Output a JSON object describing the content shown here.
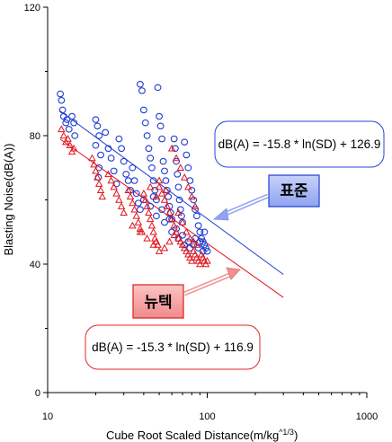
{
  "chart_data": {
    "type": "scatter",
    "title": "",
    "xlabel": "Cube Root Scaled Distance(m/kg^1/3)",
    "xlabel_main": "Cube Root Scaled Distance(m/kg",
    "xlabel_sup": "^1/3",
    "xlabel_close": ")",
    "ylabel": "Blasting Noise(dB(A))",
    "x_scale": "log",
    "xlim": [
      10,
      1000
    ],
    "ylim": [
      0,
      120
    ],
    "x_ticks": [
      "10",
      "100",
      "1000"
    ],
    "y_ticks": [
      "0",
      "40",
      "80",
      "120"
    ],
    "grid": false,
    "colors": {
      "standard": "#1f3fd0",
      "newtec": "#e0141c",
      "standard_tag_fill": "#a9b8f5",
      "newtec_tag_fill": "#f7a3a3"
    },
    "series": [
      {
        "name": "표준",
        "marker": "circle",
        "fit_equation": "dB(A) = -15.8 * ln(SD) + 126.9",
        "fit": {
          "slope": -15.8,
          "intercept": 126.9,
          "x_range": [
            12,
            300
          ]
        },
        "points": [
          [
            12,
            93
          ],
          [
            12.2,
            91
          ],
          [
            12.4,
            88
          ],
          [
            12.6,
            86
          ],
          [
            13,
            84
          ],
          [
            13.2,
            85
          ],
          [
            13.6,
            82
          ],
          [
            14.2,
            86
          ],
          [
            14.6,
            84
          ],
          [
            14.8,
            80
          ],
          [
            20,
            85
          ],
          [
            20.5,
            83
          ],
          [
            21,
            80
          ],
          [
            20,
            77
          ],
          [
            21.5,
            74
          ],
          [
            21,
            70
          ],
          [
            20.8,
            67
          ],
          [
            23,
            81
          ],
          [
            24,
            76
          ],
          [
            25,
            73
          ],
          [
            26,
            69
          ],
          [
            27,
            65
          ],
          [
            28,
            79
          ],
          [
            29,
            76
          ],
          [
            30,
            72
          ],
          [
            31,
            68
          ],
          [
            32,
            66
          ],
          [
            33,
            63
          ],
          [
            34,
            70
          ],
          [
            35,
            66
          ],
          [
            36,
            62
          ],
          [
            37,
            59
          ],
          [
            38,
            57
          ],
          [
            38,
            96
          ],
          [
            39,
            94
          ],
          [
            40,
            88
          ],
          [
            41,
            84
          ],
          [
            42,
            80
          ],
          [
            43,
            76
          ],
          [
            44,
            73
          ],
          [
            45,
            70
          ],
          [
            46,
            66
          ],
          [
            47,
            63
          ],
          [
            48,
            60
          ],
          [
            49,
            95
          ],
          [
            50,
            86
          ],
          [
            51,
            83
          ],
          [
            52,
            79
          ],
          [
            53,
            72
          ],
          [
            54,
            69
          ],
          [
            55,
            66
          ],
          [
            56,
            63
          ],
          [
            57,
            61
          ],
          [
            58,
            58
          ],
          [
            59,
            56
          ],
          [
            60,
            54
          ],
          [
            62,
            79
          ],
          [
            63,
            76
          ],
          [
            64,
            72
          ],
          [
            65,
            68
          ],
          [
            66,
            64
          ],
          [
            67,
            60
          ],
          [
            68,
            57
          ],
          [
            69,
            55
          ],
          [
            70,
            53
          ],
          [
            72,
            78
          ],
          [
            74,
            74
          ],
          [
            76,
            70
          ],
          [
            78,
            66
          ],
          [
            80,
            63
          ],
          [
            82,
            60
          ],
          [
            84,
            57
          ],
          [
            86,
            55
          ],
          [
            88,
            52
          ],
          [
            90,
            50
          ],
          [
            92,
            48
          ],
          [
            94,
            47
          ],
          [
            96,
            46
          ],
          [
            98,
            45
          ],
          [
            100,
            44
          ],
          [
            46,
            61
          ],
          [
            52,
            57
          ],
          [
            58,
            54
          ],
          [
            64,
            51
          ],
          [
            70,
            49
          ],
          [
            76,
            47
          ],
          [
            82,
            46
          ],
          [
            88,
            45
          ],
          [
            94,
            44
          ],
          [
            40,
            60
          ],
          [
            44,
            58
          ],
          [
            48,
            55
          ],
          [
            54,
            53
          ],
          [
            60,
            50
          ],
          [
            66,
            48
          ],
          [
            72,
            46
          ],
          [
            78,
            45
          ],
          [
            84,
            48
          ],
          [
            90,
            47
          ],
          [
            96,
            50
          ]
        ]
      },
      {
        "name": "뉴텍",
        "marker": "triangle",
        "fit_equation": "dB(A) = -15.3 * ln(SD) + 116.9",
        "fit": {
          "slope": -15.3,
          "intercept": 116.9,
          "x_range": [
            12,
            300
          ]
        },
        "points": [
          [
            12.2,
            82
          ],
          [
            12.6,
            80
          ],
          [
            13,
            78
          ],
          [
            13.4,
            79
          ],
          [
            13.8,
            77
          ],
          [
            14.2,
            75
          ],
          [
            14.6,
            76
          ],
          [
            19,
            73
          ],
          [
            19.5,
            71
          ],
          [
            20,
            69
          ],
          [
            20.5,
            67
          ],
          [
            21,
            65
          ],
          [
            21.5,
            63
          ],
          [
            22,
            61
          ],
          [
            24,
            68
          ],
          [
            25,
            66
          ],
          [
            26,
            64
          ],
          [
            27,
            62
          ],
          [
            28,
            60
          ],
          [
            29,
            58
          ],
          [
            30,
            56
          ],
          [
            32,
            63
          ],
          [
            33,
            61
          ],
          [
            34,
            59
          ],
          [
            35,
            57
          ],
          [
            36,
            55
          ],
          [
            37,
            53
          ],
          [
            38,
            51
          ],
          [
            39,
            50
          ],
          [
            40,
            62
          ],
          [
            41,
            60
          ],
          [
            42,
            58
          ],
          [
            43,
            56
          ],
          [
            44,
            54
          ],
          [
            45,
            52
          ],
          [
            46,
            50
          ],
          [
            47,
            48
          ],
          [
            48,
            47
          ],
          [
            49,
            46
          ],
          [
            50,
            64
          ],
          [
            52,
            62
          ],
          [
            54,
            60
          ],
          [
            56,
            58
          ],
          [
            58,
            56
          ],
          [
            60,
            54
          ],
          [
            62,
            52
          ],
          [
            64,
            50
          ],
          [
            66,
            48
          ],
          [
            68,
            47
          ],
          [
            70,
            46
          ],
          [
            72,
            45
          ],
          [
            74,
            44
          ],
          [
            76,
            43
          ],
          [
            78,
            42
          ],
          [
            80,
            41
          ],
          [
            82,
            44
          ],
          [
            84,
            43
          ],
          [
            86,
            42
          ],
          [
            88,
            41
          ],
          [
            90,
            40
          ],
          [
            92,
            43
          ],
          [
            94,
            42
          ],
          [
            96,
            41
          ],
          [
            98,
            40
          ],
          [
            100,
            41
          ],
          [
            60,
            76
          ],
          [
            64,
            73
          ],
          [
            68,
            70
          ],
          [
            72,
            67
          ],
          [
            76,
            64
          ],
          [
            80,
            61
          ],
          [
            84,
            58
          ],
          [
            50,
            66
          ],
          [
            55,
            63
          ],
          [
            44,
            64
          ],
          [
            48,
            61
          ],
          [
            66,
            56
          ],
          [
            70,
            53
          ],
          [
            74,
            50
          ],
          [
            78,
            48
          ],
          [
            82,
            47
          ],
          [
            86,
            46
          ],
          [
            62,
            49
          ],
          [
            58,
            47
          ],
          [
            54,
            45
          ],
          [
            50,
            44
          ],
          [
            46,
            46
          ],
          [
            42,
            48
          ],
          [
            38,
            50
          ],
          [
            34,
            52
          ]
        ]
      }
    ],
    "annotations": [
      {
        "series": "표준",
        "label": "표준",
        "equation": "dB(A) = -15.8 * ln(SD) + 126.9"
      },
      {
        "series": "뉴텍",
        "label": "뉴텍",
        "equation": "dB(A) = -15.3 * ln(SD) + 116.9"
      }
    ]
  }
}
